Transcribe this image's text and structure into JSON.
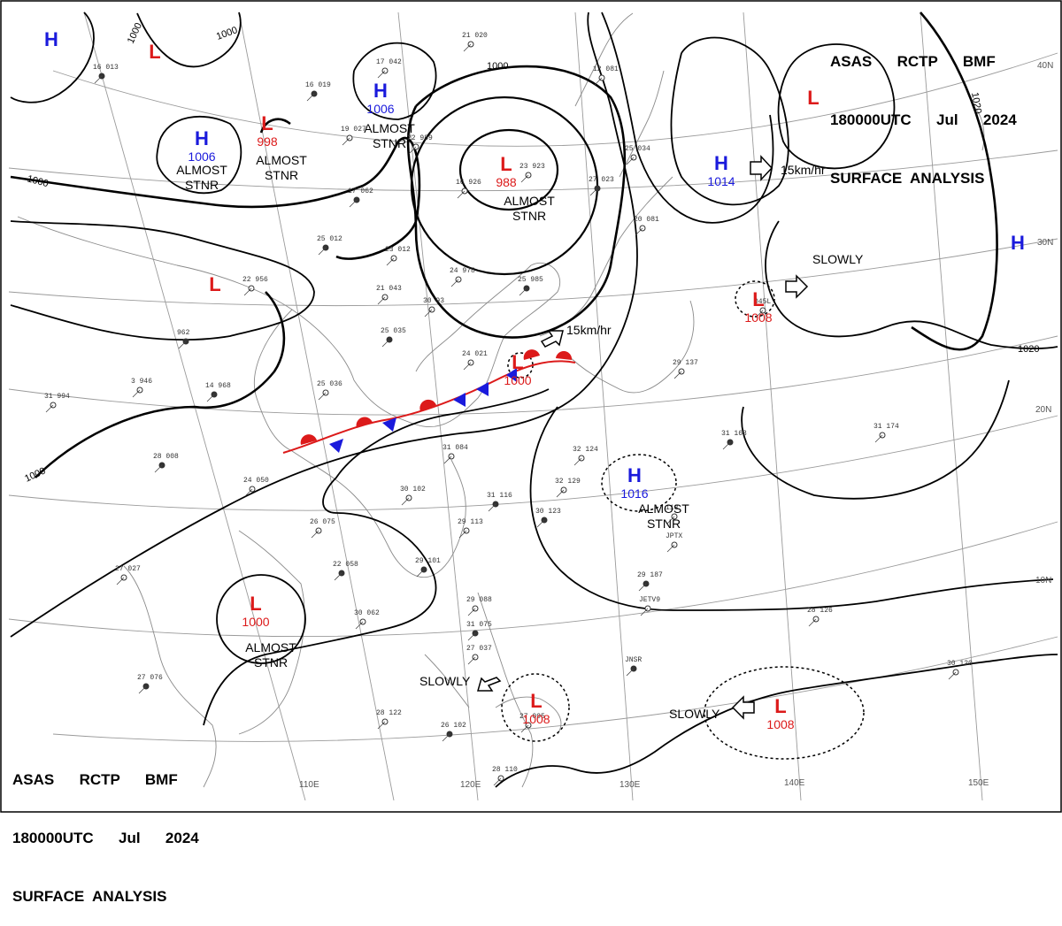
{
  "header_top": {
    "line1": "ASAS      RCTP      BMF",
    "line2": "180000UTC      Jul      2024",
    "line3": "SURFACE  ANALYSIS"
  },
  "header_bottom": {
    "line1": "ASAS      RCTP      BMF",
    "line2": "180000UTC      Jul      2024",
    "line3": "SURFACE  ANALYSIS"
  },
  "colors": {
    "high": "#1a1adc",
    "low": "#dc1a1a",
    "isobar": "#000000",
    "grid": "#9a9a9a",
    "coast": "#8a8a8a"
  },
  "longitude_labels": [
    "110E",
    "120E",
    "130E",
    "140E",
    "150E"
  ],
  "latitude_labels": [
    "40N",
    "30N",
    "20N",
    "10N"
  ],
  "isobar_labels": [
    "1000",
    "1000",
    "1000",
    "1000",
    "1000",
    "1020",
    "1020"
  ],
  "pressure_systems": [
    {
      "symbol": "H",
      "pressure": ""
    },
    {
      "symbol": "L",
      "pressure": ""
    },
    {
      "symbol": "H",
      "pressure": "1006"
    },
    {
      "symbol": "L",
      "pressure": "998"
    },
    {
      "symbol": "H",
      "pressure": "1006"
    },
    {
      "symbol": "L",
      "pressure": "988"
    },
    {
      "symbol": "H",
      "pressure": "1014"
    },
    {
      "symbol": "L",
      "pressure": ""
    },
    {
      "symbol": "H",
      "pressure": ""
    },
    {
      "symbol": "L",
      "pressure": ""
    },
    {
      "symbol": "L",
      "pressure": "1008"
    },
    {
      "symbol": "L",
      "pressure": "1000"
    },
    {
      "symbol": "H",
      "pressure": "1016"
    },
    {
      "symbol": "L",
      "pressure": "1000"
    },
    {
      "symbol": "L",
      "pressure": "1008"
    },
    {
      "symbol": "L",
      "pressure": "1008"
    }
  ],
  "movement_notes": [
    "ALMOST\nSTNR",
    "ALMOST\nSTNR",
    "ALMOST\nSTNR",
    "ALMOST\nSTNR",
    "ALMOST\nSTNR",
    "ALMOST\nSTNR",
    "15km/hr",
    "15km/hr",
    "SLOWLY",
    "SLOWLY",
    "SLOWLY"
  ],
  "station_sample": [
    "16 013",
    "17 042",
    "21 020",
    "16 019",
    "19 027",
    "22 989",
    "17 062",
    "23 923",
    "16 926",
    "25 012",
    "23 012",
    "24 978",
    "25 985",
    "21 043",
    "30 93",
    "25 035",
    "24 021",
    "25 036",
    "14 968",
    "3 946",
    "31 994",
    "28 008",
    "31 084",
    "30 102",
    "31 116",
    "32 129",
    "32 124",
    "31 163",
    "31 174",
    "29 137",
    "29 187",
    "28 126",
    "30 120",
    "29 101",
    "30 062",
    "29 088",
    "31 075",
    "27 037",
    "28 122",
    "26 102",
    "27 095",
    "28 110",
    "27 076",
    "27 027",
    "24 050",
    "22 058",
    "26 075",
    "29 113",
    "30 123",
    "12 081",
    "25 034",
    "27 023",
    "20 081",
    "22 956",
    "962",
    "113",
    "JPTX",
    "JNSR",
    "JETV9",
    "045L"
  ]
}
